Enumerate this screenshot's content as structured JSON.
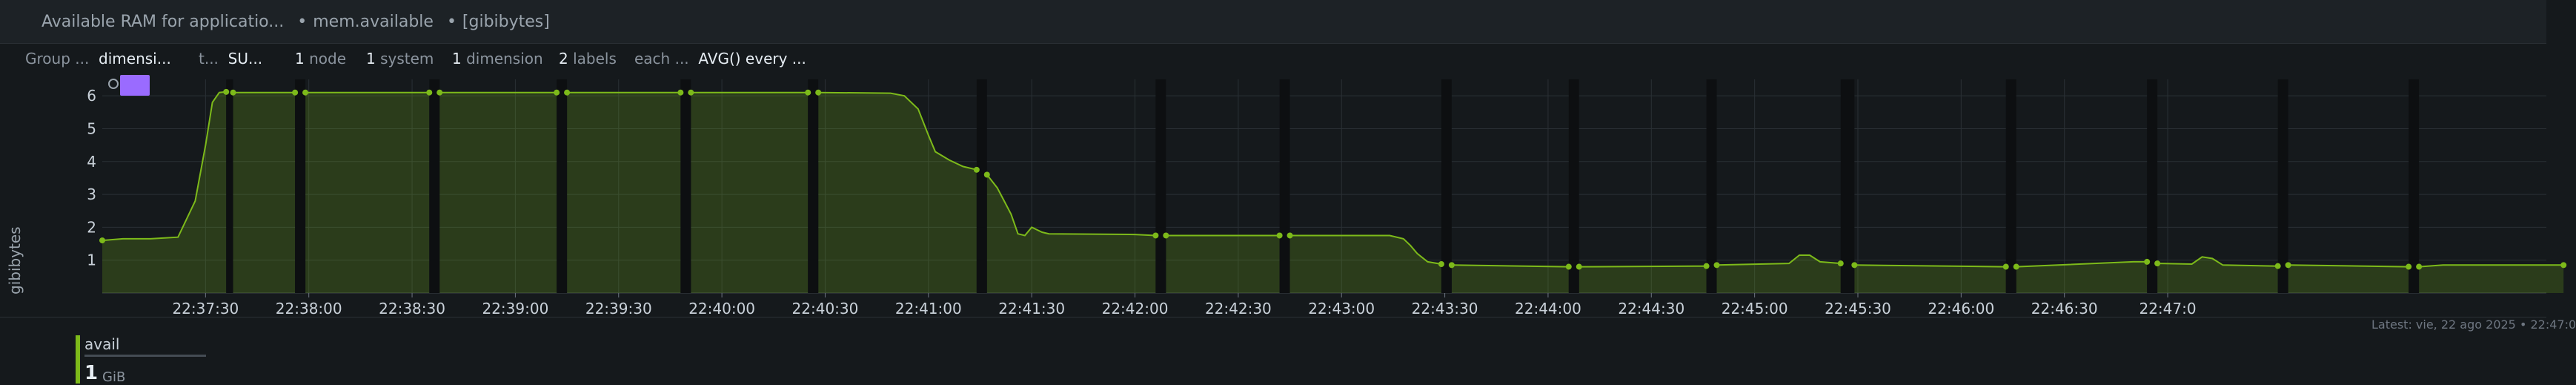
{
  "header": {
    "title": "Available RAM for applicatio...",
    "context": "mem.available",
    "units": "[gibibytes]"
  },
  "toolbar": {
    "group_label": "Group ...",
    "group_value": "dimensi...",
    "t_label": "t...",
    "t_value": "SU...",
    "nodes_count": "1",
    "nodes_label": "node",
    "systems_count": "1",
    "systems_label": "system",
    "dimensions_count": "1",
    "dimensions_label": "dimension",
    "labels_count": "2",
    "labels_label": "labels",
    "each_label": "each ...",
    "agg_value": "AVG() every ..."
  },
  "chart_data": {
    "type": "area",
    "ylabel": "gibibytes",
    "ylim": [
      0,
      6.5
    ],
    "yticks": [
      "1",
      "2",
      "3",
      "4",
      "5",
      "6"
    ],
    "xticks": [
      "22:37:30",
      "22:38:00",
      "22:38:30",
      "22:39:00",
      "22:39:30",
      "22:40:00",
      "22:40:30",
      "22:41:00",
      "22:41:30",
      "22:42:00",
      "22:42:30",
      "22:43:00",
      "22:43:30",
      "22:44:00",
      "22:44:30",
      "22:45:00",
      "22:45:30",
      "22:46:00",
      "22:46:30",
      "22:47:0"
    ],
    "grid": true,
    "series": [
      {
        "name": "avail",
        "color": "#7dba1a",
        "segments": [
          [
            [
              0,
              1.6
            ],
            [
              6,
              1.65
            ],
            [
              14,
              1.65
            ],
            [
              22,
              1.7
            ],
            [
              27,
              2.8
            ],
            [
              30,
              4.5
            ],
            [
              32,
              5.8
            ],
            [
              34,
              6.1
            ],
            [
              36,
              6.12
            ]
          ],
          [
            [
              38,
              6.1
            ],
            [
              56,
              6.1
            ]
          ],
          [
            [
              59,
              6.1
            ],
            [
              95,
              6.1
            ]
          ],
          [
            [
              98,
              6.1
            ],
            [
              132,
              6.1
            ]
          ],
          [
            [
              135,
              6.1
            ],
            [
              168,
              6.1
            ]
          ],
          [
            [
              171,
              6.1
            ],
            [
              205,
              6.1
            ]
          ],
          [
            [
              208,
              6.1
            ],
            [
              229,
              6.08
            ],
            [
              233,
              6.0
            ],
            [
              237,
              5.6
            ],
            [
              240,
              4.8
            ],
            [
              242,
              4.3
            ],
            [
              246,
              4.05
            ],
            [
              250,
              3.85
            ],
            [
              254,
              3.75
            ]
          ],
          [
            [
              257,
              3.6
            ],
            [
              260,
              3.2
            ],
            [
              262,
              2.8
            ],
            [
              264,
              2.4
            ],
            [
              266,
              1.8
            ],
            [
              268,
              1.75
            ],
            [
              270,
              2.0
            ],
            [
              273,
              1.85
            ],
            [
              275,
              1.8
            ],
            [
              300,
              1.78
            ],
            [
              306,
              1.75
            ]
          ],
          [
            [
              309,
              1.75
            ],
            [
              342,
              1.75
            ]
          ],
          [
            [
              345,
              1.75
            ],
            [
              374,
              1.75
            ],
            [
              378,
              1.65
            ],
            [
              380,
              1.45
            ],
            [
              382,
              1.2
            ],
            [
              385,
              0.95
            ],
            [
              389,
              0.88
            ]
          ],
          [
            [
              392,
              0.85
            ],
            [
              426,
              0.8
            ]
          ],
          [
            [
              429,
              0.8
            ],
            [
              466,
              0.82
            ]
          ],
          [
            [
              469,
              0.85
            ],
            [
              490,
              0.9
            ],
            [
              493,
              1.15
            ],
            [
              496,
              1.15
            ],
            [
              499,
              0.95
            ],
            [
              505,
              0.9
            ]
          ],
          [
            [
              509,
              0.85
            ],
            [
              553,
              0.8
            ]
          ],
          [
            [
              556,
              0.8
            ],
            [
              590,
              0.95
            ],
            [
              594,
              0.95
            ]
          ],
          [
            [
              597,
              0.9
            ],
            [
              607,
              0.88
            ],
            [
              610,
              1.1
            ],
            [
              613,
              1.05
            ],
            [
              616,
              0.85
            ],
            [
              632,
              0.82
            ]
          ],
          [
            [
              635,
              0.85
            ],
            [
              670,
              0.8
            ]
          ],
          [
            [
              673,
              0.8
            ],
            [
              680,
              0.85
            ],
            [
              715,
              0.85
            ]
          ]
        ],
        "gaps": [
          [
            36,
            38
          ],
          [
            56,
            59
          ],
          [
            95,
            98
          ],
          [
            132,
            135
          ],
          [
            168,
            171
          ],
          [
            205,
            208
          ],
          [
            254,
            257
          ],
          [
            306,
            309
          ],
          [
            342,
            345
          ],
          [
            389,
            392
          ],
          [
            426,
            429
          ],
          [
            466,
            469
          ],
          [
            505,
            509
          ],
          [
            553,
            556
          ],
          [
            594,
            597
          ],
          [
            632,
            635
          ],
          [
            670,
            673
          ]
        ]
      }
    ]
  },
  "legend": {
    "name": "avail",
    "value": "1",
    "unit": "GiB"
  },
  "footer": {
    "latest": "Latest: vie, 22 ago 2025 • 22:47:0"
  }
}
